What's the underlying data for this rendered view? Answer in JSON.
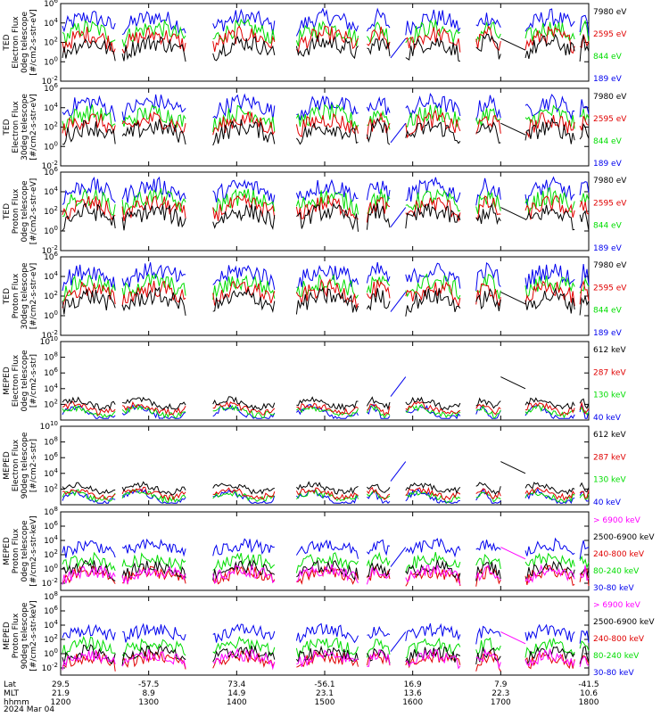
{
  "colors": {
    "black": "#000000",
    "red": "#e00000",
    "green": "#00dd00",
    "blue": "#0000ee",
    "magenta": "#ff00ff"
  },
  "chart_data": {
    "type": "line",
    "title": "",
    "x_range": [
      "1200",
      "1800"
    ],
    "x_axis": {
      "rows": [
        {
          "label": "Lat",
          "values": [
            "29.5",
            "-57.5",
            "73.4",
            "-56.1",
            "16.9",
            "7.9",
            "-41.5"
          ]
        },
        {
          "label": "MLT",
          "values": [
            "21.9",
            "8.9",
            "14.9",
            "23.1",
            "13.6",
            "22.3",
            "10.6"
          ]
        },
        {
          "label": "hhmm",
          "values": [
            "1200",
            "1300",
            "1400",
            "1500",
            "1600",
            "1700",
            "1800"
          ]
        }
      ],
      "date": "2024 Mar 04"
    },
    "panels": [
      {
        "ylabel": [
          "TED",
          "Electron Flux",
          "0deg telescope",
          "[#/cm2-s-str-eV]"
        ],
        "log_scale": true,
        "ylim_exp": [
          -2,
          6
        ],
        "tick_exps": [
          -2,
          0,
          2,
          4,
          6
        ],
        "legend": [
          {
            "name": "7980 eV",
            "color": "#000000"
          },
          {
            "name": "2595 eV",
            "color": "#e00000"
          },
          {
            "name": "844 eV",
            "color": "#00dd00"
          },
          {
            "name": "189 eV",
            "color": "#0000ee"
          }
        ]
      },
      {
        "ylabel": [
          "TED",
          "Electron Flux",
          "30deg telescope",
          "[#/cm2-s-str-eV]"
        ],
        "log_scale": true,
        "ylim_exp": [
          -2,
          6
        ],
        "tick_exps": [
          -2,
          0,
          2,
          4,
          6
        ],
        "legend": [
          {
            "name": "7980 eV",
            "color": "#000000"
          },
          {
            "name": "2595 eV",
            "color": "#e00000"
          },
          {
            "name": "844 eV",
            "color": "#00dd00"
          },
          {
            "name": "189 eV",
            "color": "#0000ee"
          }
        ]
      },
      {
        "ylabel": [
          "TED",
          "Proton Flux",
          "0deg telescope",
          "[#/cm2-s-str-eV]"
        ],
        "log_scale": true,
        "ylim_exp": [
          -2,
          6
        ],
        "tick_exps": [
          -2,
          0,
          2,
          4,
          6
        ],
        "legend": [
          {
            "name": "7980 eV",
            "color": "#000000"
          },
          {
            "name": "2595 eV",
            "color": "#e00000"
          },
          {
            "name": "844 eV",
            "color": "#00dd00"
          },
          {
            "name": "189 eV",
            "color": "#0000ee"
          }
        ]
      },
      {
        "ylabel": [
          "TED",
          "Proton Flux",
          "30deg telescope",
          "[#/cm2-s-str-eV]"
        ],
        "log_scale": true,
        "ylim_exp": [
          -2,
          6
        ],
        "tick_exps": [
          -2,
          0,
          2,
          4,
          6
        ],
        "legend": [
          {
            "name": "7980 eV",
            "color": "#000000"
          },
          {
            "name": "2595 eV",
            "color": "#e00000"
          },
          {
            "name": "844 eV",
            "color": "#00dd00"
          },
          {
            "name": "189 eV",
            "color": "#0000ee"
          }
        ]
      },
      {
        "ylabel": [
          "MEPED",
          "Electron Flux",
          "0deg telescope",
          "[#/cm2-s-str]"
        ],
        "log_scale": true,
        "ylim_exp": [
          0,
          10
        ],
        "tick_exps": [
          2,
          4,
          6,
          8,
          10
        ],
        "legend": [
          {
            "name": "612 keV",
            "color": "#000000"
          },
          {
            "name": "287 keV",
            "color": "#e00000"
          },
          {
            "name": "130 keV",
            "color": "#00dd00"
          },
          {
            "name": "40 keV",
            "color": "#0000ee"
          }
        ]
      },
      {
        "ylabel": [
          "MEPED",
          "Electron Flux",
          "90deg telescope",
          "[#/cm2-s-str]"
        ],
        "log_scale": true,
        "ylim_exp": [
          0,
          10
        ],
        "tick_exps": [
          2,
          4,
          6,
          8,
          10
        ],
        "legend": [
          {
            "name": "612 keV",
            "color": "#000000"
          },
          {
            "name": "287 keV",
            "color": "#e00000"
          },
          {
            "name": "130 keV",
            "color": "#00dd00"
          },
          {
            "name": "40 keV",
            "color": "#0000ee"
          }
        ]
      },
      {
        "ylabel": [
          "MEPED",
          "Proton Flux",
          "0deg telescope",
          "[#/cm2-s-str-keV]"
        ],
        "log_scale": true,
        "ylim_exp": [
          -3,
          8
        ],
        "tick_exps": [
          -2,
          0,
          2,
          4,
          6,
          8
        ],
        "legend": [
          {
            "name": "> 6900 keV",
            "color": "#ff00ff"
          },
          {
            "name": "2500-6900 keV",
            "color": "#000000"
          },
          {
            "name": "240-800 keV",
            "color": "#e00000"
          },
          {
            "name": "80-240 keV",
            "color": "#00dd00"
          },
          {
            "name": "30-80 keV",
            "color": "#0000ee"
          }
        ]
      },
      {
        "ylabel": [
          "MEPED",
          "Proton Flux",
          "90deg telescope",
          "[#/cm2-s-str-keV]"
        ],
        "log_scale": true,
        "ylim_exp": [
          -3,
          8
        ],
        "tick_exps": [
          -2,
          0,
          2,
          4,
          6,
          8
        ],
        "legend": [
          {
            "name": "> 6900 keV",
            "color": "#ff00ff"
          },
          {
            "name": "2500-6900 keV",
            "color": "#000000"
          },
          {
            "name": "240-800 keV",
            "color": "#e00000"
          },
          {
            "name": "80-240 keV",
            "color": "#00dd00"
          },
          {
            "name": "30-80 keV",
            "color": "#0000ee"
          }
        ]
      }
    ]
  }
}
